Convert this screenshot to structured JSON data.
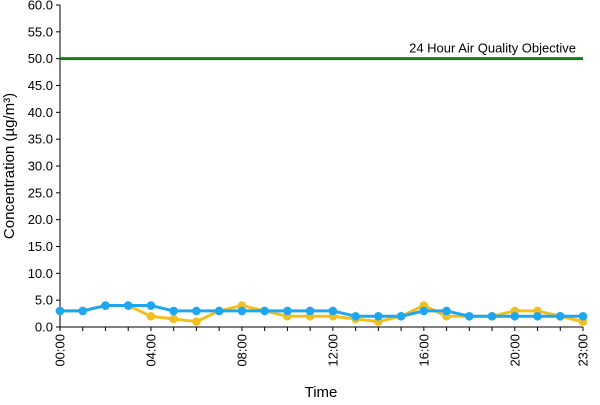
{
  "chart_data": {
    "type": "line",
    "title": "",
    "xlabel": "Time",
    "ylabel": "Concentration (µg/m³)",
    "ylim": [
      0,
      60
    ],
    "y_ticks": [
      "0.0",
      "5.0",
      "10.0",
      "15.0",
      "20.0",
      "25.0",
      "30.0",
      "35.0",
      "40.0",
      "45.0",
      "50.0",
      "55.0",
      "60.0"
    ],
    "x_tick_labels": [
      "00:00",
      "04:00",
      "08:00",
      "12:00",
      "16:00",
      "20:00",
      "23:00"
    ],
    "x_tick_hours": [
      0,
      4,
      8,
      12,
      16,
      20,
      23
    ],
    "x_hours": [
      0,
      1,
      2,
      3,
      4,
      5,
      6,
      7,
      8,
      9,
      10,
      11,
      12,
      13,
      14,
      15,
      16,
      17,
      18,
      19,
      20,
      21,
      22,
      23
    ],
    "grid": false,
    "series": [
      {
        "color": "#f0c020",
        "values": [
          3,
          3,
          4,
          4,
          2,
          1.5,
          1,
          3,
          4,
          3,
          2,
          2,
          2,
          1.5,
          1,
          2,
          4,
          2,
          2,
          2,
          3,
          3,
          2,
          1
        ]
      },
      {
        "color": "#1ea7f0",
        "values": [
          3,
          3,
          4,
          4,
          4,
          3,
          3,
          3,
          3,
          3,
          3,
          3,
          3,
          2,
          2,
          2,
          3,
          3,
          2,
          2,
          2,
          2,
          2,
          2
        ]
      }
    ],
    "reference_line": {
      "label": "24 Hour Air Quality Objective",
      "value": 50,
      "color": "#1a7a1a"
    }
  }
}
